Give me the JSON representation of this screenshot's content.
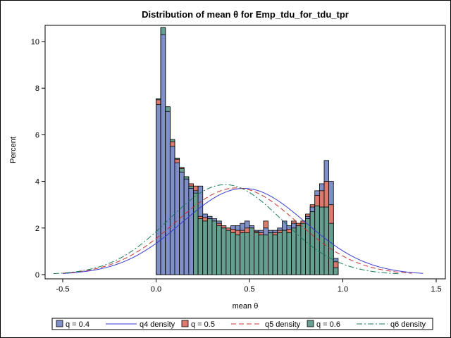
{
  "chart_data": {
    "type": "bar",
    "title": "Distribution of mean θ for Emp_tdu_for_tdu_tpr",
    "xlabel": "mean θ",
    "ylabel": "Percent",
    "xlim": [
      -0.6,
      1.5
    ],
    "ylim": [
      0,
      10.7
    ],
    "x_ticks": [
      "-0.5",
      "0.0",
      "0.5",
      "1.0",
      "1.5"
    ],
    "y_ticks": [
      "0",
      "2",
      "4",
      "6",
      "8",
      "10"
    ],
    "bin_width": 0.025,
    "bin_start": 0.0,
    "bin_left_edges": [
      0.0,
      0.025,
      0.05,
      0.075,
      0.1,
      0.125,
      0.15,
      0.175,
      0.2,
      0.225,
      0.25,
      0.275,
      0.3,
      0.325,
      0.35,
      0.375,
      0.4,
      0.425,
      0.45,
      0.475,
      0.5,
      0.525,
      0.55,
      0.575,
      0.6,
      0.625,
      0.65,
      0.675,
      0.7,
      0.725,
      0.75,
      0.775,
      0.8,
      0.825,
      0.85,
      0.875,
      0.9,
      0.925,
      0.95,
      0.975
    ],
    "series": [
      {
        "name": "q = 0.4",
        "color": "#7f90c8",
        "values": [
          7.3,
          10.3,
          7.0,
          5.5,
          4.8,
          4.4,
          4.1,
          3.7,
          3.6,
          3.8,
          2.6,
          2.5,
          2.4,
          2.3,
          2.0,
          2.0,
          2.1,
          2.1,
          2.2,
          2.3,
          2.1,
          1.9,
          1.9,
          2.0,
          1.9,
          1.9,
          2.0,
          2.3,
          2.1,
          2.2,
          2.2,
          2.3,
          2.5,
          2.9,
          3.6,
          3.9,
          4.9,
          4.0,
          0.7,
          0.0
        ]
      },
      {
        "name": "q = 0.5",
        "color": "#dd7a6e",
        "values": [
          7.5,
          10.6,
          7.2,
          5.7,
          4.95,
          4.6,
          4.2,
          3.9,
          3.8,
          2.5,
          2.45,
          2.4,
          2.3,
          2.2,
          2.1,
          2.0,
          1.95,
          1.9,
          1.9,
          2.0,
          2.0,
          1.85,
          1.8,
          2.3,
          1.8,
          1.8,
          1.9,
          1.9,
          1.95,
          2.3,
          2.2,
          2.3,
          2.6,
          3.0,
          3.4,
          3.6,
          4.0,
          3.0,
          0.55,
          0.0
        ]
      },
      {
        "name": "q = 0.6",
        "color": "#669e8f",
        "values": [
          7.55,
          10.6,
          7.2,
          5.8,
          5.0,
          4.55,
          4.2,
          3.8,
          3.5,
          2.4,
          2.3,
          2.4,
          2.3,
          2.1,
          2.0,
          1.9,
          1.8,
          1.7,
          1.8,
          1.8,
          2.0,
          1.8,
          1.7,
          1.7,
          1.8,
          1.7,
          1.8,
          1.9,
          1.8,
          2.0,
          2.1,
          2.2,
          2.4,
          2.7,
          2.95,
          2.9,
          2.9,
          2.2,
          0.3,
          0.0
        ]
      }
    ],
    "density_curves": [
      {
        "name": "q4 density",
        "color": "#3a3ad0",
        "dash": "solid",
        "mean": 0.47,
        "sd": 0.33,
        "peak_percent": 3.7,
        "x_range": [
          -0.5,
          1.43
        ]
      },
      {
        "name": "q5 density",
        "color": "#c83030",
        "dash": "dashed",
        "mean": 0.43,
        "sd": 0.325,
        "peak_percent": 3.72,
        "x_range": [
          -0.5,
          1.37
        ]
      },
      {
        "name": "q6 density",
        "color": "#177a5a",
        "dash": "dashdot",
        "mean": 0.37,
        "sd": 0.305,
        "peak_percent": 3.86,
        "x_range": [
          -0.55,
          1.3
        ]
      }
    ],
    "legend_position": "bottom",
    "legend": [
      {
        "kind": "bar",
        "label": "q = 0.4",
        "color": "#7f90c8"
      },
      {
        "kind": "line",
        "label": "q4 density",
        "color": "#3a3ad0",
        "dash": "solid"
      },
      {
        "kind": "bar",
        "label": "q = 0.5",
        "color": "#dd7a6e"
      },
      {
        "kind": "line",
        "label": "q5 density",
        "color": "#c83030",
        "dash": "dashed"
      },
      {
        "kind": "bar",
        "label": "q = 0.6",
        "color": "#669e8f"
      },
      {
        "kind": "line",
        "label": "q6 density",
        "color": "#177a5a",
        "dash": "dashdot"
      }
    ],
    "grid": false
  }
}
